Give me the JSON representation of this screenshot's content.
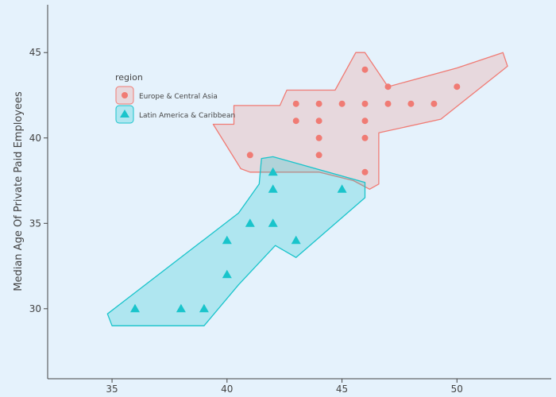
{
  "chart_data": {
    "type": "scatter",
    "title": "",
    "xlabel": "",
    "ylabel": "Median Age Of Private Paid Employees",
    "xlim": [
      32.2,
      54.1
    ],
    "ylim": [
      25.9,
      47.8
    ],
    "x_ticks": [
      35,
      40,
      45,
      50
    ],
    "y_ticks": [
      30,
      35,
      40,
      45
    ],
    "grid": false,
    "legend": {
      "title": "region",
      "position": "top-left"
    },
    "series": [
      {
        "name": "Europe & Central Asia",
        "marker": "circle",
        "color": "#f07b74",
        "fill": "rgba(240, 123, 116, 0.22)",
        "points": [
          {
            "x": 41,
            "y": 39
          },
          {
            "x": 43,
            "y": 42
          },
          {
            "x": 43,
            "y": 41
          },
          {
            "x": 44,
            "y": 42
          },
          {
            "x": 44,
            "y": 41
          },
          {
            "x": 44,
            "y": 40
          },
          {
            "x": 44,
            "y": 39
          },
          {
            "x": 45,
            "y": 42
          },
          {
            "x": 46,
            "y": 44
          },
          {
            "x": 46,
            "y": 42
          },
          {
            "x": 46,
            "y": 41
          },
          {
            "x": 46,
            "y": 40
          },
          {
            "x": 46,
            "y": 38
          },
          {
            "x": 47,
            "y": 43
          },
          {
            "x": 47,
            "y": 42
          },
          {
            "x": 48,
            "y": 42
          },
          {
            "x": 49,
            "y": 42
          },
          {
            "x": 50,
            "y": 43
          }
        ],
        "hull": [
          [
            39.4,
            40.8
          ],
          [
            40.3,
            40.8
          ],
          [
            40.3,
            41.9
          ],
          [
            42.3,
            41.9
          ],
          [
            42.6,
            42.8
          ],
          [
            44.7,
            42.8
          ],
          [
            45.6,
            45
          ],
          [
            46.0,
            45
          ],
          [
            47.0,
            43.0
          ],
          [
            50.0,
            44.1
          ],
          [
            52.0,
            45
          ],
          [
            52.2,
            44.2
          ],
          [
            49.3,
            41.1
          ],
          [
            46.6,
            40.3
          ],
          [
            46.6,
            37.3
          ],
          [
            46.2,
            37.0
          ],
          [
            45.5,
            37.5
          ],
          [
            44.0,
            38.0
          ],
          [
            41.0,
            38.0
          ],
          [
            40.6,
            38.2
          ]
        ]
      },
      {
        "name": "Latin America & Caribbean",
        "marker": "triangle",
        "color": "#19c4cb",
        "fill": "rgba(25, 196, 203, 0.26)",
        "points": [
          {
            "x": 36,
            "y": 30
          },
          {
            "x": 38,
            "y": 30
          },
          {
            "x": 39,
            "y": 30
          },
          {
            "x": 40,
            "y": 34
          },
          {
            "x": 40,
            "y": 32
          },
          {
            "x": 41,
            "y": 35
          },
          {
            "x": 42,
            "y": 38
          },
          {
            "x": 42,
            "y": 37
          },
          {
            "x": 42,
            "y": 35
          },
          {
            "x": 43,
            "y": 34
          },
          {
            "x": 45,
            "y": 37
          }
        ],
        "hull": [
          [
            34.8,
            29.7
          ],
          [
            35.0,
            29.0
          ],
          [
            39.0,
            29.0
          ],
          [
            40.5,
            31.4
          ],
          [
            42.1,
            33.7
          ],
          [
            43.0,
            33.0
          ],
          [
            46.0,
            36.5
          ],
          [
            46.0,
            37.4
          ],
          [
            42.0,
            38.9
          ],
          [
            41.5,
            38.8
          ],
          [
            41.4,
            37.3
          ],
          [
            40.5,
            35.6
          ]
        ]
      }
    ]
  }
}
